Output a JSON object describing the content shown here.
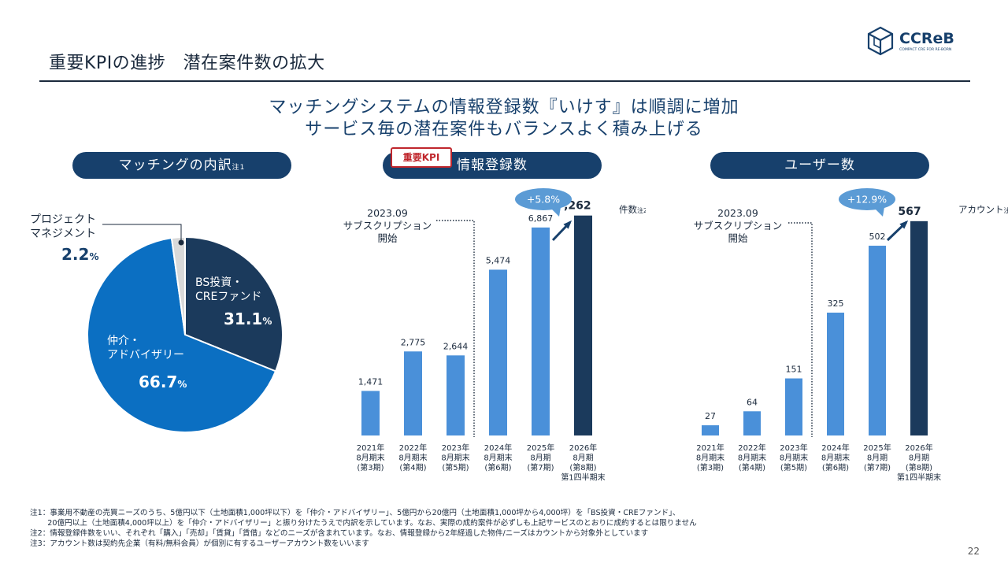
{
  "header": {
    "title": "重要KPIの進捗　潜在案件数の拡大",
    "logo_text": "CCReB",
    "logo_tagline": "COMPACT CRE FOR RE-BORN"
  },
  "headline": {
    "line1": "マッチングシステムの情報登録数『いけす』は順調に増加",
    "line2": "サービス毎の潜在案件もバランスよく積み上げる"
  },
  "sections": {
    "pie_title": "マッチングの内訳",
    "pie_title_note": "注1",
    "bar1_title": "情報登録数",
    "bar1_badge": "重要KPI",
    "bar2_title": "ユーザー数"
  },
  "colors": {
    "navy": "#17406c",
    "dark_bar": "#1b3a5c",
    "light_bar": "#4a90d9",
    "blue": "#0b6fc2",
    "gray": "#d9d9d9",
    "growth_bubble": "#5b9bd5"
  },
  "chart_data": [
    {
      "type": "pie",
      "slices": [
        {
          "label": "BS投資・CREファンド",
          "value": 31.1,
          "display": "31.1",
          "color": "#1b3a5c"
        },
        {
          "label": "仲介・アドバイザリー",
          "value": 66.7,
          "display": "66.7",
          "color": "#0b6fc2"
        },
        {
          "label": "プロジェクトマネジメント",
          "value": 2.2,
          "display": "2.2",
          "color": "#d9d9d9"
        }
      ],
      "label_lines": {
        "bs": [
          "BS投資・",
          "CREファンド"
        ],
        "chukai": [
          "仲介・",
          "アドバイザリー"
        ],
        "pm": [
          "プロジェクト",
          "マネジメント"
        ]
      },
      "unit": "%"
    },
    {
      "type": "bar",
      "categories": [
        [
          "2021年",
          "8月期末",
          "(第3期)"
        ],
        [
          "2022年",
          "8月期末",
          "(第4期)"
        ],
        [
          "2023年",
          "8月期末",
          "(第5期)"
        ],
        [
          "2024年",
          "8月期末",
          "(第6期)"
        ],
        [
          "2025年",
          "8月期",
          "(第7期)"
        ],
        [
          "2026年",
          "8月期",
          "(第8期)",
          "第1四半期末"
        ]
      ],
      "values": [
        1471,
        2775,
        2644,
        5474,
        6867,
        7262
      ],
      "value_labels": [
        "1,471",
        "2,775",
        "2,644",
        "5,474",
        "6,867",
        "7,262"
      ],
      "unit": "件数",
      "unit_note": "注2",
      "growth": "+5.8%",
      "annotation": [
        "2023.09",
        "サブスクリプション",
        "開始"
      ],
      "ylim": [
        0,
        7800
      ]
    },
    {
      "type": "bar",
      "categories": [
        [
          "2021年",
          "8月期末",
          "(第3期)"
        ],
        [
          "2022年",
          "8月期末",
          "(第4期)"
        ],
        [
          "2023年",
          "8月期末",
          "(第5期)"
        ],
        [
          "2024年",
          "8月期末",
          "(第6期)"
        ],
        [
          "2025年",
          "8月期",
          "(第7期)"
        ],
        [
          "2026年",
          "8月期",
          "(第8期)",
          "第1四半期末"
        ]
      ],
      "values": [
        27,
        64,
        151,
        325,
        502,
        567
      ],
      "value_labels": [
        "27",
        "64",
        "151",
        "325",
        "502",
        "567"
      ],
      "unit": "アカウント",
      "unit_note": "注3",
      "growth": "+12.9%",
      "annotation": [
        "2023.09",
        "サブスクリプション",
        "開始"
      ],
      "ylim": [
        0,
        625
      ]
    }
  ],
  "notes": [
    "注1：事業用不動産の売買ニーズのうち、5億円以下（土地面積1,000坪以下）を「仲介・アドバイザリー」、5億円から20億円（土地面積1,000坪から4,000坪）を「BS投資・CREファンド」、",
    "　　 20億円以上（土地面積4,000坪以上）を「仲介・アドバイザリー」と振り分けたうえで内訳を示しています。なお、実際の成約案件が必ずしも上記サービスのとおりに成約するとは限りません",
    "注2：情報登録件数をいい、それぞれ「購入」「売却」「賃貸」「賃借」などのニーズが含まれています。なお、情報登録から2年経過した物件/ニーズはカウントから対象外としています",
    "注3：アカウント数は契約先企業（有料/無料会員）が個別に有するユーザーアカウント数をいいます"
  ],
  "page_number": "22"
}
